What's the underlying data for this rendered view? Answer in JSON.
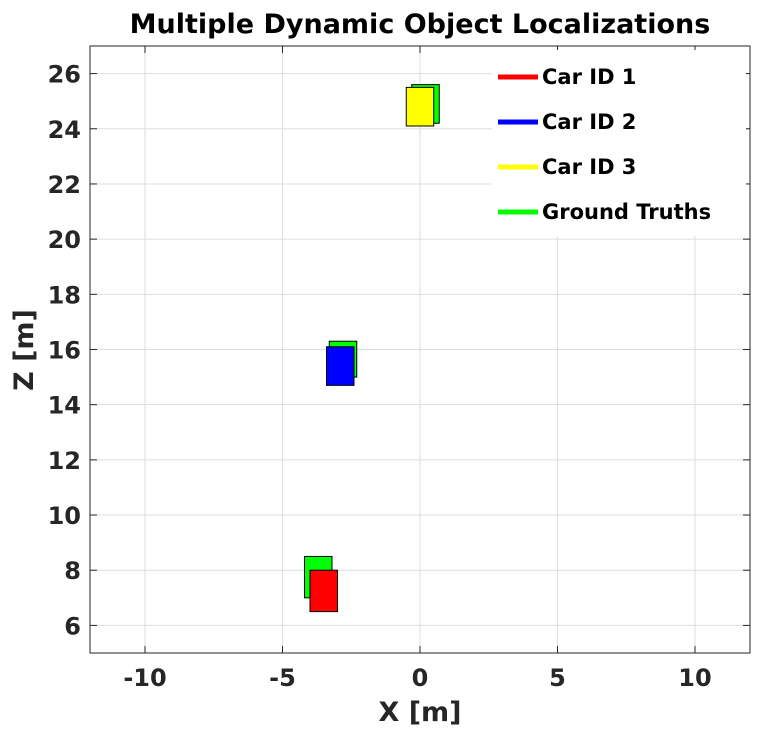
{
  "chart_data": {
    "type": "scatter",
    "title": "Multiple Dynamic Object Localizations",
    "xlabel": "X [m]",
    "ylabel": "Z [m]",
    "xlim": [
      -12,
      12
    ],
    "ylim": [
      5,
      27
    ],
    "xticks": [
      -10,
      -5,
      0,
      5,
      10
    ],
    "yticks": [
      6,
      8,
      10,
      12,
      14,
      16,
      18,
      20,
      22,
      24,
      26
    ],
    "grid": true,
    "legend_position": "top-right",
    "legend": [
      {
        "label": "Car ID 1",
        "color": "#ff0000"
      },
      {
        "label": "Car ID 2",
        "color": "#0000ff"
      },
      {
        "label": "Car ID 3",
        "color": "#ffff00"
      },
      {
        "label": "Ground Truths",
        "color": "#00ff00"
      }
    ],
    "objects": [
      {
        "type": "ground_truth",
        "car": "Car ID 1",
        "color": "#00ff00",
        "x_range": [
          -4.2,
          -3.2
        ],
        "z_range": [
          7.0,
          8.5
        ]
      },
      {
        "type": "estimate",
        "car": "Car ID 1",
        "color": "#ff0000",
        "x_range": [
          -4.0,
          -3.0
        ],
        "z_range": [
          6.5,
          8.0
        ]
      },
      {
        "type": "ground_truth",
        "car": "Car ID 2",
        "color": "#00ff00",
        "x_range": [
          -3.3,
          -2.3
        ],
        "z_range": [
          15.0,
          16.3
        ]
      },
      {
        "type": "estimate",
        "car": "Car ID 2",
        "color": "#0000ff",
        "x_range": [
          -3.4,
          -2.4
        ],
        "z_range": [
          14.7,
          16.1
        ]
      },
      {
        "type": "ground_truth",
        "car": "Car ID 3",
        "color": "#00ff00",
        "x_range": [
          -0.3,
          0.7
        ],
        "z_range": [
          24.2,
          25.6
        ]
      },
      {
        "type": "estimate",
        "car": "Car ID 3",
        "color": "#ffff00",
        "x_range": [
          -0.5,
          0.5
        ],
        "z_range": [
          24.1,
          25.5
        ]
      }
    ]
  }
}
